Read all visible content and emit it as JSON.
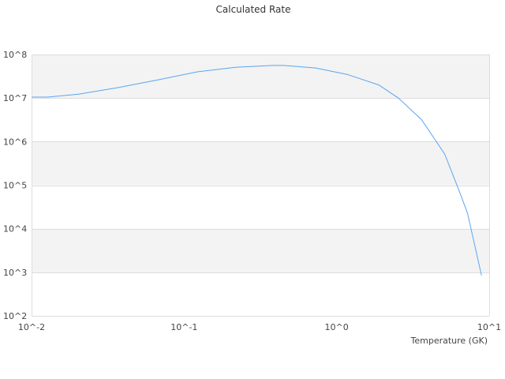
{
  "chart_data": {
    "type": "line",
    "title": "Calculated Rate",
    "xlabel": "Temperature (GK)",
    "ylabel": "",
    "xscale": "log",
    "yscale": "log",
    "xlim": [
      0.01,
      10
    ],
    "ylim": [
      100,
      100000000
    ],
    "x_tick_labels": [
      "10^-2",
      "10^-1",
      "10^0",
      "10^1"
    ],
    "y_tick_labels": [
      "10^2",
      "10^3",
      "10^4",
      "10^5",
      "10^6",
      "10^7",
      "10^8"
    ],
    "grid": true,
    "alternating_bands": true,
    "line_color": "#5aa5f0",
    "band_color": "#f3f3f3",
    "grid_color": "#dddddd",
    "series": [
      {
        "x": [
          0.01,
          0.0127,
          0.0204,
          0.037,
          0.067,
          0.122,
          0.22,
          0.38,
          0.45,
          0.73,
          1.17,
          1.89,
          2.54,
          3.6,
          5.1,
          6.3,
          7.2,
          8.9
        ],
        "y": [
          10500000,
          10500000,
          12300000,
          17400000,
          26000000,
          40000000,
          51000000,
          56000000,
          56000000,
          49000000,
          35000000,
          20000000,
          10000000,
          3200000,
          520000,
          80000,
          23000,
          850
        ]
      }
    ]
  }
}
